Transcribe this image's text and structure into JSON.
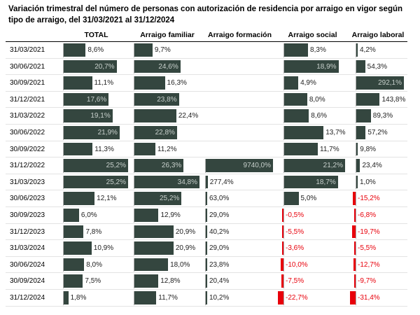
{
  "title": "Variación trimestral del número de personas con autorización de residencia por arraigo en vigor según tipo de arraigo, del 31/03/2021 al 31/12/2024",
  "bar_color": "#34463f",
  "negative_color": "#e8000b",
  "dates": [
    "31/03/2021",
    "30/06/2021",
    "30/09/2021",
    "31/12/2021",
    "31/03/2022",
    "30/06/2022",
    "30/09/2022",
    "31/12/2022",
    "31/03/2023",
    "30/06/2023",
    "30/09/2023",
    "31/12/2023",
    "31/03/2024",
    "30/06/2024",
    "30/09/2024",
    "31/12/2024"
  ],
  "columns": [
    {
      "header": "TOTAL",
      "values": [
        8.6,
        20.7,
        11.1,
        17.6,
        19.1,
        21.9,
        11.3,
        25.2,
        25.2,
        12.1,
        6.0,
        7.8,
        10.9,
        8.0,
        7.5,
        1.8
      ],
      "value_labels": [
        "8,6%",
        "20,7%",
        "11,1%",
        "17,6%",
        "19,1%",
        "21,9%",
        "11,3%",
        "25,2%",
        "25,2%",
        "12,1%",
        "6,0%",
        "7,8%",
        "10,9%",
        "8,0%",
        "7,5%",
        "1,8%"
      ]
    },
    {
      "header": "Arraigo familiar",
      "values": [
        9.7,
        24.6,
        16.3,
        23.8,
        22.4,
        22.8,
        11.2,
        26.3,
        34.8,
        25.2,
        12.9,
        20.9,
        20.9,
        18.0,
        12.8,
        11.7
      ],
      "value_labels": [
        "9,7%",
        "24,6%",
        "16,3%",
        "23,8%",
        "22,4%",
        "22,8%",
        "11,2%",
        "26,3%",
        "34,8%",
        "25,2%",
        "12,9%",
        "20,9%",
        "20,9%",
        "18,0%",
        "12,8%",
        "11,7%"
      ]
    },
    {
      "header": "Arraigo formación",
      "values": [
        null,
        null,
        null,
        null,
        null,
        null,
        null,
        9740.0,
        277.4,
        63.0,
        29.0,
        40.2,
        29.0,
        23.8,
        20.4,
        10.2
      ],
      "value_labels": [
        null,
        null,
        null,
        null,
        null,
        null,
        null,
        "9740,0%",
        "277,4%",
        "63,0%",
        "29,0%",
        "40,2%",
        "29,0%",
        "23,8%",
        "20,4%",
        "10,2%"
      ]
    },
    {
      "header": "Arraigo social",
      "values": [
        8.3,
        18.9,
        4.9,
        8.0,
        8.6,
        13.7,
        11.7,
        21.2,
        18.7,
        5.0,
        -0.5,
        -5.5,
        -3.6,
        -10.0,
        -7.5,
        -22.7
      ],
      "value_labels": [
        "8,3%",
        "18,9%",
        "4,9%",
        "8,0%",
        "8,6%",
        "13,7%",
        "11,7%",
        "21,2%",
        "18,7%",
        "5,0%",
        "-0,5%",
        "-5,5%",
        "-3,6%",
        "-10,0%",
        "-7,5%",
        "-22,7%"
      ]
    },
    {
      "header": "Arraigo laboral",
      "values": [
        4.2,
        54.3,
        292.1,
        143.8,
        89.3,
        57.2,
        9.8,
        23.4,
        1.0,
        -15.2,
        -6.8,
        -19.7,
        -5.5,
        -12.7,
        -9.7,
        -31.4
      ],
      "value_labels": [
        "4,2%",
        "54,3%",
        "292,1%",
        "143,8%",
        "89,3%",
        "57,2%",
        "9,8%",
        "23,4%",
        "1,0%",
        "-15,2%",
        "-6,8%",
        "-19,7%",
        "-5,5%",
        "-12,7%",
        "-9,7%",
        "-31,4%"
      ]
    }
  ]
}
